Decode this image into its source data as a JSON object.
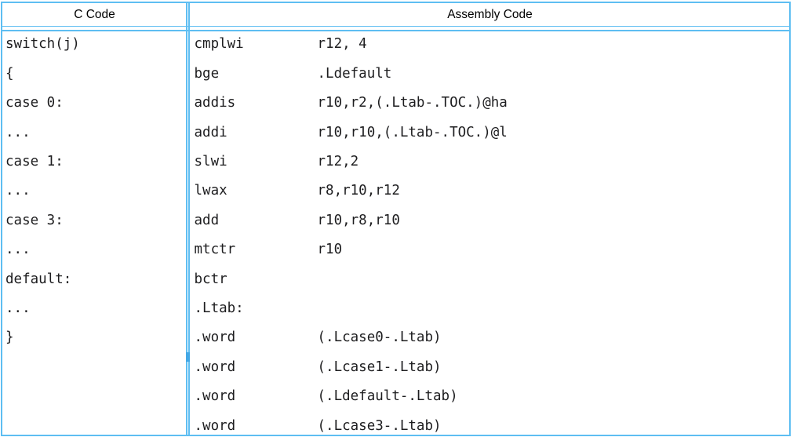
{
  "table": {
    "headers": {
      "c": "C Code",
      "assembly": "Assembly Code"
    },
    "c_code_lines": [
      "switch(j)",
      "{",
      "case 0:",
      "...",
      "case 1:",
      "...",
      "case 3:",
      "...",
      "default:",
      "...",
      "}"
    ],
    "assembly_rows": [
      {
        "mnemonic": "cmplwi",
        "operands": "r12, 4"
      },
      {
        "mnemonic": "bge",
        "operands": ".Ldefault"
      },
      {
        "mnemonic": "addis",
        "operands": "r10,r2,(.Ltab-.TOC.)@ha"
      },
      {
        "mnemonic": "addi",
        "operands": "r10,r10,(.Ltab-.TOC.)@l"
      },
      {
        "mnemonic": "slwi",
        "operands": "r12,2"
      },
      {
        "mnemonic": "lwax",
        "operands": "r8,r10,r12"
      },
      {
        "mnemonic": "add",
        "operands": "r10,r8,r10"
      },
      {
        "mnemonic": "mtctr",
        "operands": "r10"
      },
      {
        "mnemonic": "bctr",
        "operands": ""
      },
      {
        "mnemonic": ".Ltab:",
        "operands": ""
      },
      {
        "mnemonic": ".word",
        "operands": "(.Lcase0-.Ltab)"
      },
      {
        "mnemonic": ".word",
        "operands": "(.Lcase1-.Ltab)"
      },
      {
        "mnemonic": ".word",
        "operands": "(.Ldefault-.Ltab)"
      },
      {
        "mnemonic": ".word",
        "operands": "(.Lcase3-.Ltab)"
      }
    ]
  },
  "colors": {
    "border": "#5ebef2",
    "notch": "#43a8e6",
    "text": "#1d1d1f",
    "header_text": "#000000",
    "background": "#ffffff"
  }
}
